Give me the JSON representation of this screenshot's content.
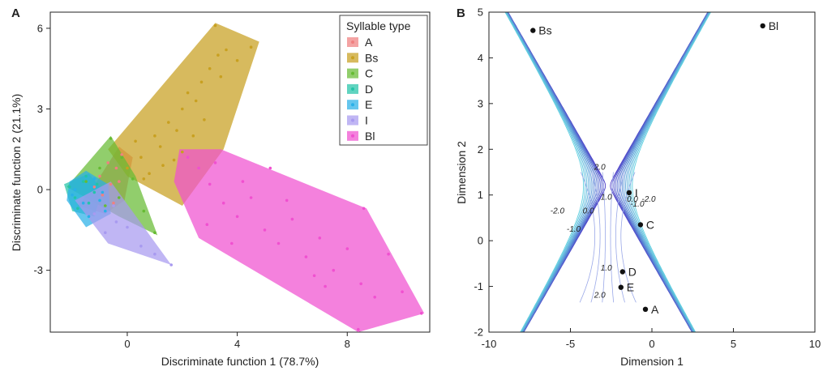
{
  "colors": {
    "A": "#f08080",
    "Bs": "#c8a020",
    "C": "#66bb33",
    "D": "#22c4a8",
    "E": "#2ab0e8",
    "I": "#a89af0",
    "Bl": "#f050d0",
    "contour_outer": "#5040c8",
    "contour_inner": "#60d0e0"
  },
  "chart_data": [
    {
      "type": "scatter",
      "panel_label": "A",
      "xlabel": "Discriminate function 1 (78.7%)",
      "ylabel": "Discriminate function 2 (21.1%)",
      "xlim": [
        -2.8,
        11.0
      ],
      "ylim": [
        -5.3,
        6.6
      ],
      "xticks": [
        0,
        4,
        8
      ],
      "yticks": [
        -3,
        0,
        3,
        6
      ],
      "xtick_labels": [
        "0",
        "4",
        "8"
      ],
      "ytick_labels": [
        "-3",
        "0",
        "3",
        "6"
      ],
      "grid": false,
      "legend": {
        "title": "Syllable type",
        "placement": "top-right",
        "entries": [
          "A",
          "Bs",
          "C",
          "D",
          "E",
          "I",
          "Bl"
        ]
      },
      "series": [
        {
          "name": "A",
          "hull": [
            [
              -1.3,
              0.0
            ],
            [
              -0.3,
              1.6
            ],
            [
              0.2,
              1.2
            ],
            [
              -0.1,
              -0.4
            ],
            [
              -0.8,
              -0.9
            ],
            [
              -1.8,
              -0.6
            ]
          ],
          "points": [
            [
              -1.0,
              0.5
            ],
            [
              -0.7,
              1.0
            ],
            [
              -0.4,
              0.8
            ],
            [
              -0.6,
              0.2
            ],
            [
              -0.9,
              -0.2
            ],
            [
              -0.3,
              0.3
            ],
            [
              -1.2,
              0.1
            ],
            [
              -0.5,
              -0.5
            ],
            [
              -0.2,
              1.3
            ]
          ]
        },
        {
          "name": "Bs",
          "hull": [
            [
              -0.7,
              1.5
            ],
            [
              3.2,
              6.2
            ],
            [
              4.8,
              5.5
            ],
            [
              3.5,
              1.5
            ],
            [
              2.0,
              -0.6
            ],
            [
              0.0,
              0.5
            ]
          ],
          "points": [
            [
              0.0,
              0.8
            ],
            [
              0.5,
              1.2
            ],
            [
              0.8,
              0.6
            ],
            [
              1.0,
              2.0
            ],
            [
              1.2,
              1.6
            ],
            [
              0.3,
              1.8
            ],
            [
              1.5,
              2.5
            ],
            [
              2.0,
              3.0
            ],
            [
              2.2,
              3.6
            ],
            [
              1.8,
              2.2
            ],
            [
              2.5,
              3.3
            ],
            [
              2.7,
              4.0
            ],
            [
              3.0,
              4.5
            ],
            [
              3.3,
              5.0
            ],
            [
              3.6,
              5.2
            ],
            [
              4.0,
              4.8
            ],
            [
              4.5,
              5.3
            ],
            [
              3.2,
              6.1
            ],
            [
              2.4,
              2.0
            ],
            [
              2.8,
              2.6
            ],
            [
              1.3,
              0.9
            ],
            [
              0.6,
              0.4
            ],
            [
              2.0,
              1.4
            ],
            [
              3.4,
              4.2
            ],
            [
              1.7,
              1.1
            ]
          ]
        },
        {
          "name": "C",
          "hull": [
            [
              -2.2,
              0.1
            ],
            [
              -0.6,
              2.0
            ],
            [
              0.3,
              0.5
            ],
            [
              1.1,
              -1.7
            ],
            [
              -0.3,
              -1.0
            ]
          ],
          "points": [
            [
              -0.6,
              1.9
            ],
            [
              -0.2,
              1.2
            ],
            [
              0.2,
              0.4
            ],
            [
              0.6,
              -0.8
            ],
            [
              1.0,
              -1.6
            ],
            [
              -1.0,
              0.8
            ],
            [
              -1.5,
              0.3
            ],
            [
              -0.3,
              -0.3
            ],
            [
              -0.8,
              -0.6
            ]
          ]
        },
        {
          "name": "D",
          "hull": [
            [
              -2.3,
              0.2
            ],
            [
              -1.4,
              0.6
            ],
            [
              -0.9,
              0.0
            ],
            [
              -1.2,
              -1.0
            ],
            [
              -2.0,
              -0.8
            ]
          ],
          "points": [
            [
              -2.1,
              0.1
            ],
            [
              -1.9,
              -0.3
            ],
            [
              -1.6,
              0.3
            ],
            [
              -1.4,
              -0.5
            ],
            [
              -1.2,
              -0.1
            ],
            [
              -1.8,
              -0.7
            ],
            [
              -1.5,
              0.5
            ],
            [
              -1.1,
              0.2
            ]
          ]
        },
        {
          "name": "E",
          "hull": [
            [
              -2.1,
              0.3
            ],
            [
              -1.5,
              0.7
            ],
            [
              -0.7,
              0.2
            ],
            [
              -0.6,
              -0.9
            ],
            [
              -1.5,
              -1.4
            ],
            [
              -2.2,
              -0.4
            ]
          ],
          "points": [
            [
              -1.9,
              0.0
            ],
            [
              -1.6,
              -0.5
            ],
            [
              -1.3,
              0.1
            ],
            [
              -1.0,
              -0.4
            ],
            [
              -0.8,
              -0.8
            ],
            [
              -1.4,
              -1.0
            ],
            [
              -2.0,
              -0.2
            ],
            [
              -1.2,
              0.4
            ],
            [
              -0.9,
              -0.1
            ]
          ]
        },
        {
          "name": "I",
          "hull": [
            [
              -1.9,
              -0.4
            ],
            [
              -0.6,
              0.3
            ],
            [
              1.6,
              -2.8
            ],
            [
              -0.7,
              -2.0
            ]
          ],
          "points": [
            [
              -0.4,
              -1.2
            ],
            [
              0.0,
              -1.4
            ],
            [
              0.5,
              -2.1
            ],
            [
              1.0,
              -2.4
            ],
            [
              1.6,
              -2.8
            ],
            [
              -0.8,
              -1.6
            ],
            [
              -1.2,
              -0.9
            ],
            [
              -0.5,
              -0.6
            ]
          ]
        },
        {
          "name": "Bl",
          "hull": [
            [
              1.9,
              1.5
            ],
            [
              3.4,
              1.5
            ],
            [
              8.7,
              -0.7
            ],
            [
              10.8,
              -4.6
            ],
            [
              8.4,
              -5.3
            ],
            [
              2.6,
              -1.8
            ],
            [
              1.7,
              0.3
            ]
          ],
          "points": [
            [
              2.2,
              1.2
            ],
            [
              2.6,
              0.8
            ],
            [
              3.0,
              0.2
            ],
            [
              3.5,
              -0.5
            ],
            [
              4.0,
              -1.0
            ],
            [
              4.5,
              -0.3
            ],
            [
              5.0,
              -1.5
            ],
            [
              5.5,
              -2.0
            ],
            [
              6.0,
              -1.1
            ],
            [
              6.5,
              -2.5
            ],
            [
              7.0,
              -1.8
            ],
            [
              7.5,
              -3.0
            ],
            [
              8.0,
              -2.2
            ],
            [
              8.5,
              -3.5
            ],
            [
              9.0,
              -4.0
            ],
            [
              10.0,
              -3.8
            ],
            [
              10.7,
              -4.6
            ],
            [
              8.4,
              -5.2
            ],
            [
              4.2,
              0.3
            ],
            [
              5.8,
              -0.4
            ],
            [
              6.8,
              -3.2
            ],
            [
              7.2,
              -3.6
            ],
            [
              2.9,
              -1.3
            ],
            [
              3.8,
              -2.0
            ],
            [
              8.6,
              -0.7
            ],
            [
              9.5,
              -2.4
            ],
            [
              5.2,
              0.8
            ],
            [
              3.2,
              1.0
            ]
          ]
        }
      ]
    },
    {
      "type": "scatter",
      "panel_label": "B",
      "xlabel": "Dimension 1",
      "ylabel": "Dimension 2",
      "xlim": [
        -10,
        10
      ],
      "ylim": [
        -2,
        5
      ],
      "xticks": [
        -10,
        -5,
        0,
        5,
        10
      ],
      "yticks": [
        -2,
        -1,
        0,
        1,
        2,
        3,
        4,
        5
      ],
      "xtick_labels": [
        "-10",
        "-5",
        "0",
        "5",
        "10"
      ],
      "ytick_labels": [
        "-2",
        "-1",
        "0",
        "1",
        "2",
        "3",
        "4",
        "5"
      ],
      "grid": false,
      "contour_levels": [
        -2.0,
        -1.0,
        0.0,
        1.0,
        2.0
      ],
      "contour_labels": [
        {
          "text": "2.0",
          "x": -3.2,
          "y": 1.55
        },
        {
          "text": "1.0",
          "x": -2.8,
          "y": 0.9
        },
        {
          "text": "0.0",
          "x": -1.2,
          "y": 0.85
        },
        {
          "text": "-1.0",
          "x": -0.9,
          "y": 0.75
        },
        {
          "text": "-2.0",
          "x": -0.2,
          "y": 0.85
        },
        {
          "text": "-2.0",
          "x": -5.8,
          "y": 0.6
        },
        {
          "text": "-1.0",
          "x": -4.8,
          "y": 0.2
        },
        {
          "text": "0.0",
          "x": -3.9,
          "y": 0.6
        },
        {
          "text": "1.0",
          "x": -2.8,
          "y": -0.65
        },
        {
          "text": "2.0",
          "x": -3.2,
          "y": -1.25
        }
      ],
      "points": [
        {
          "label": "Bs",
          "x": -7.3,
          "y": 4.6
        },
        {
          "label": "Bl",
          "x": 6.8,
          "y": 4.7
        },
        {
          "label": "I",
          "x": -1.4,
          "y": 1.05
        },
        {
          "label": "C",
          "x": -0.7,
          "y": 0.35
        },
        {
          "label": "D",
          "x": -1.8,
          "y": -0.68
        },
        {
          "label": "E",
          "x": -1.9,
          "y": -1.02
        },
        {
          "label": "A",
          "x": -0.4,
          "y": -1.5
        }
      ]
    }
  ]
}
